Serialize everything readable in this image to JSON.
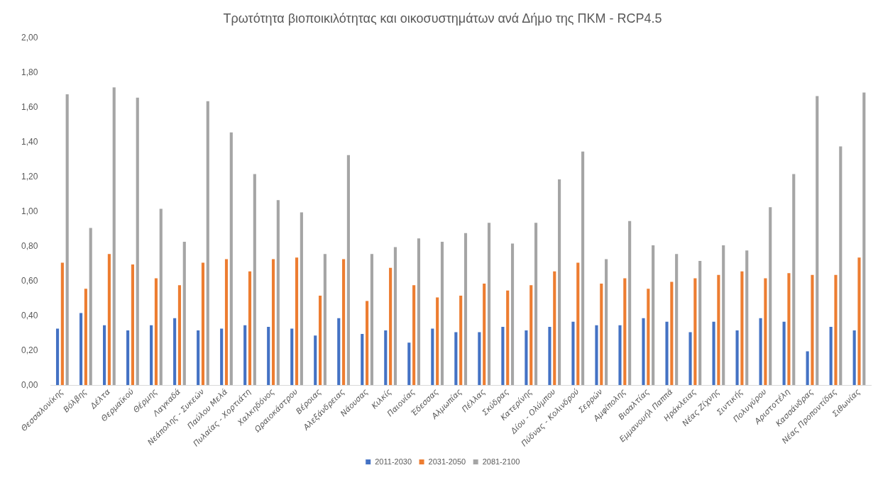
{
  "chart_data": {
    "type": "bar",
    "title": "Τρωτότητα βιοποικιλότητας και οικοσυστημάτων ανά Δήμο της ΠΚΜ - RCP4.5",
    "categories": [
      "Θεσσαλονίκης",
      "Βόλβης",
      "Δέλτα",
      "Θερμαϊκού",
      "Θέρμης",
      "Λαγκαδά",
      "Νεάπολης - Συκεών",
      "Παύλου Μελά",
      "Πυλαίας - Χορτιάτη",
      "Χαλκηδόνος",
      "Ωραιοκάστρου",
      "Βέροιας",
      "Αλεξάνδρειας",
      "Νάουσας",
      "Κιλκίς",
      "Παιονίας",
      "Έδεσσας",
      "Αλμωπίας",
      "Πέλλας",
      "Σκύδρας",
      "Κατερίνης",
      "Δίου - Ολύμπου",
      "Πύδνας - Κολινδρού",
      "Σερρών",
      "Αμφίπολης",
      "Βισαλτίας",
      "Εμμανουήλ Παππά",
      "Ηράκλειας",
      "Νέας Ζίχνης",
      "Σιντικής",
      "Πολυγύρου",
      "Αριστοτέλη",
      "Κασσάνδρας",
      "Νέας Προποντίδας",
      "Σιθωνίας"
    ],
    "series": [
      {
        "name": "2011-2030",
        "color": "#4472c4",
        "values": [
          0.33,
          0.42,
          0.35,
          0.32,
          0.35,
          0.39,
          0.32,
          0.33,
          0.35,
          0.34,
          0.33,
          0.29,
          0.39,
          0.3,
          0.32,
          0.25,
          0.33,
          0.31,
          0.31,
          0.34,
          0.32,
          0.34,
          0.37,
          0.35,
          0.35,
          0.39,
          0.37,
          0.31,
          0.37,
          0.32,
          0.39,
          0.37,
          0.2,
          0.34,
          0.32
        ]
      },
      {
        "name": "2031-2050",
        "color": "#ed7d31",
        "values": [
          0.71,
          0.56,
          0.76,
          0.7,
          0.62,
          0.58,
          0.71,
          0.73,
          0.66,
          0.73,
          0.74,
          0.52,
          0.73,
          0.49,
          0.68,
          0.58,
          0.51,
          0.52,
          0.59,
          0.55,
          0.58,
          0.66,
          0.71,
          0.59,
          0.62,
          0.56,
          0.6,
          0.62,
          0.64,
          0.66,
          0.62,
          0.65,
          0.64,
          0.64,
          0.74
        ]
      },
      {
        "name": "2081-2100",
        "color": "#a5a5a5",
        "values": [
          1.68,
          0.91,
          1.72,
          1.66,
          1.02,
          0.83,
          1.64,
          1.46,
          1.22,
          1.07,
          1.0,
          0.76,
          1.33,
          0.76,
          0.8,
          0.85,
          0.83,
          0.88,
          0.94,
          0.82,
          0.94,
          1.19,
          1.35,
          0.73,
          0.95,
          0.81,
          0.76,
          0.72,
          0.81,
          0.78,
          1.03,
          1.22,
          1.67,
          1.38,
          1.69
        ]
      }
    ],
    "ylim": [
      0,
      2
    ],
    "yticks": [
      {
        "value": 0,
        "label": "0,00"
      },
      {
        "value": 0.2,
        "label": "0,20"
      },
      {
        "value": 0.4,
        "label": "0,40"
      },
      {
        "value": 0.6,
        "label": "0,60"
      },
      {
        "value": 0.8,
        "label": "0,80"
      },
      {
        "value": 1,
        "label": "1,00"
      },
      {
        "value": 1.2,
        "label": "1,20"
      },
      {
        "value": 1.4,
        "label": "1,40"
      },
      {
        "value": 1.6,
        "label": "1,60"
      },
      {
        "value": 1.8,
        "label": "1,80"
      },
      {
        "value": 2,
        "label": "2,00"
      }
    ],
    "grid": false,
    "legend": "bottom"
  }
}
